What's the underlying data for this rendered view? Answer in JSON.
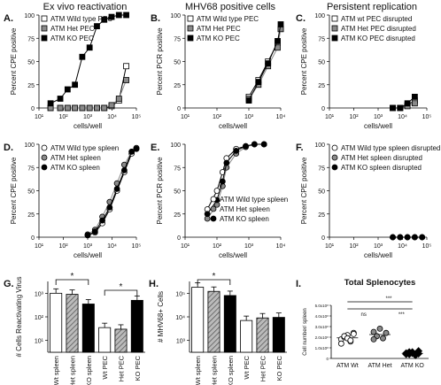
{
  "headers": [
    "Ex vivo reactivation",
    "MHV68 positive cells",
    "Persistent replication"
  ],
  "colors": {
    "black": "#000000",
    "gray": "#8a8a8a",
    "white": "#ffffff",
    "red": "#e05050"
  },
  "chart_data": [
    {
      "letter": "A.",
      "type": "line",
      "xscale": "log",
      "ylabel": "Percent CPE positive",
      "xlabel": "cells/well",
      "xticks": [
        "10¹",
        "10²",
        "10³",
        "10⁴",
        "10⁵"
      ],
      "yticks": [
        "0",
        "25",
        "50",
        "75",
        "100"
      ],
      "legend": [
        "ATM Wild type PEC",
        "ATM Het PEC",
        "ATM KO PEC"
      ],
      "series": [
        {
          "marker": "open-square",
          "x": [
            30,
            75,
            150,
            300,
            600,
            1200,
            2400,
            4800,
            9600,
            19200,
            38400
          ],
          "y": [
            0,
            0,
            0,
            0,
            0,
            0,
            0,
            0,
            2,
            8,
            45
          ]
        },
        {
          "marker": "gray-square",
          "x": [
            30,
            75,
            150,
            300,
            600,
            1200,
            2400,
            4800,
            9600,
            19200,
            38400
          ],
          "y": [
            0,
            0,
            0,
            0,
            0,
            0,
            0,
            0,
            3,
            10,
            30
          ]
        },
        {
          "marker": "filled-square",
          "x": [
            30,
            75,
            150,
            300,
            600,
            1200,
            2400,
            4800,
            9600,
            19200,
            38400
          ],
          "y": [
            5,
            10,
            20,
            25,
            55,
            65,
            88,
            95,
            98,
            100,
            100
          ]
        }
      ]
    },
    {
      "letter": "B.",
      "type": "line",
      "xscale": "log",
      "ylabel": "Percent PCR positive",
      "xlabel": "cells/well",
      "xticks": [
        "10¹",
        "10²",
        "10³",
        "10⁴"
      ],
      "yticks": [
        "0",
        "25",
        "50",
        "75",
        "100"
      ],
      "legend": [
        "ATM Wild type PEC",
        "ATM Het PEC",
        "ATM KO PEC"
      ],
      "series": [
        {
          "marker": "open-square",
          "x": [
            1000,
            2000,
            4000,
            8000,
            10000
          ],
          "y": [
            12,
            30,
            50,
            70,
            85
          ]
        },
        {
          "marker": "gray-square",
          "x": [
            1000,
            2000,
            4000,
            8000,
            10000
          ],
          "y": [
            10,
            25,
            45,
            65,
            85
          ]
        },
        {
          "marker": "filled-square",
          "x": [
            1000,
            2000,
            4000,
            8000,
            10000
          ],
          "y": [
            8,
            28,
            48,
            72,
            90
          ]
        }
      ]
    },
    {
      "letter": "C.",
      "type": "line",
      "xscale": "log",
      "ylabel": "Percent CPE positive",
      "xlabel": "cells/well",
      "xticks": [
        "10¹",
        "10²",
        "10³",
        "10⁴",
        "10⁵"
      ],
      "yticks": [
        "0",
        "25",
        "50",
        "75",
        "100"
      ],
      "legend": [
        "ATM wt PEC disrupted",
        "ATM Het PEC disrupted",
        "ATM KO PEC disrupted"
      ],
      "series": [
        {
          "marker": "open-square",
          "x": [
            4000,
            8000,
            16000,
            32000
          ],
          "y": [
            0,
            0,
            3,
            8
          ]
        },
        {
          "marker": "gray-square",
          "x": [
            4000,
            8000,
            16000,
            32000
          ],
          "y": [
            0,
            0,
            2,
            5
          ]
        },
        {
          "marker": "filled-square",
          "x": [
            4000,
            8000,
            16000,
            32000
          ],
          "y": [
            0,
            0,
            5,
            12
          ]
        }
      ]
    },
    {
      "letter": "D.",
      "type": "line",
      "xscale": "log",
      "ylabel": "Percent CPE positive",
      "xlabel": "cells/well",
      "xticks": [
        "10¹",
        "10²",
        "10³",
        "10⁴",
        "10⁵"
      ],
      "yticks": [
        "0",
        "25",
        "50",
        "75",
        "100"
      ],
      "legend": [
        "ATM Wild type spleen",
        "ATM Het spleen",
        "ATM KO spleen"
      ],
      "series": [
        {
          "marker": "open-circle",
          "x": [
            1000,
            2000,
            4000,
            8000,
            16000,
            32000,
            64000,
            100000
          ],
          "y": [
            2,
            5,
            15,
            30,
            50,
            70,
            90,
            95
          ]
        },
        {
          "marker": "gray-circle",
          "x": [
            1000,
            2000,
            4000,
            8000,
            16000,
            32000,
            64000,
            100000
          ],
          "y": [
            3,
            8,
            22,
            38,
            58,
            78,
            92,
            96
          ]
        },
        {
          "marker": "filled-circle",
          "x": [
            1000,
            2000,
            4000,
            8000,
            16000,
            32000,
            64000,
            100000
          ],
          "y": [
            2,
            6,
            18,
            32,
            52,
            72,
            92,
            95
          ]
        }
      ]
    },
    {
      "letter": "E.",
      "type": "line",
      "xscale": "log",
      "ylabel": "Percent PCR positive",
      "xlabel": "cells/well",
      "xticks": [
        "10¹",
        "10²",
        "10³",
        "10⁴"
      ],
      "yticks": [
        "0",
        "25",
        "50",
        "75",
        "100"
      ],
      "legend": [
        "ATM Wild type spleen",
        "ATM Het spleen",
        "ATM KO spleen"
      ],
      "series": [
        {
          "marker": "open-circle",
          "x": [
            50,
            100,
            150,
            200,
            400,
            800,
            1500,
            3000
          ],
          "y": [
            30,
            50,
            70,
            85,
            95,
            98,
            100,
            100
          ]
        },
        {
          "marker": "gray-circle",
          "x": [
            50,
            100,
            150,
            200,
            400,
            800,
            1500,
            3000
          ],
          "y": [
            20,
            35,
            55,
            75,
            90,
            97,
            100,
            100
          ]
        },
        {
          "marker": "filled-circle",
          "x": [
            50,
            100,
            150,
            200,
            400,
            800,
            1500,
            3000
          ],
          "y": [
            25,
            40,
            60,
            80,
            93,
            98,
            100,
            100
          ]
        }
      ]
    },
    {
      "letter": "F.",
      "type": "line",
      "xscale": "log",
      "ylabel": "Percent CPE positive",
      "xlabel": "cells/well",
      "xticks": [
        "10¹",
        "10²",
        "10³",
        "10⁴",
        "10⁵"
      ],
      "yticks": [
        "0",
        "25",
        "50",
        "75",
        "100"
      ],
      "legend": [
        "ATM Wild type spleen disrupted",
        "ATM Het spleen disrupted",
        "ATM KO spleen disrupted"
      ],
      "series": [
        {
          "marker": "open-circle",
          "x": [
            4000,
            8000,
            16000,
            32000,
            64000
          ],
          "y": [
            0,
            0,
            0,
            0,
            0
          ]
        },
        {
          "marker": "gray-circle",
          "x": [
            4000,
            8000,
            16000,
            32000,
            64000
          ],
          "y": [
            0,
            0,
            0,
            0,
            0
          ]
        },
        {
          "marker": "filled-circle",
          "x": [
            4000,
            8000,
            16000,
            32000,
            64000
          ],
          "y": [
            0,
            0,
            0,
            0,
            0
          ]
        }
      ]
    },
    {
      "letter": "G.",
      "type": "bar",
      "yscale": "log",
      "ylabel": "# Cells Reactivating Virus",
      "yticks": [
        "10¹",
        "10²",
        "10³"
      ],
      "categories": [
        "Wt spleen",
        "Het spleen",
        "KO spleen",
        "Wt PEC",
        "Het PEC",
        "KO PEC"
      ],
      "values": [
        1000,
        900,
        350,
        35,
        30,
        500
      ],
      "significance": [
        "*",
        "*"
      ]
    },
    {
      "letter": "H.",
      "type": "bar",
      "yscale": "log",
      "ylabel": "# MHV68+ Cells",
      "yticks": [
        "10³",
        "10⁴",
        "10⁵"
      ],
      "categories": [
        "Wt spleen",
        "Het spleen",
        "KO spleen",
        "Wt PEC",
        "Het PEC",
        "KO PEC"
      ],
      "values": [
        180000,
        120000,
        80000,
        7000,
        9000,
        9500
      ],
      "significance": [
        "*"
      ]
    },
    {
      "letter": "I.",
      "type": "scatter",
      "title": "Total Splenocytes",
      "ylabel": "Cell number/ spleen",
      "yticks": [
        "5.0x10⁸",
        "4.0x10⁸",
        "3.0x10⁸",
        "2.0x10⁸",
        "1.0x10⁸",
        "0"
      ],
      "categories": [
        "ATM Wt",
        "ATM Het",
        "ATM KO"
      ],
      "significance": [
        "ns",
        "***",
        "***"
      ],
      "series": [
        {
          "category": "ATM Wt",
          "marker": "open-circle",
          "values": [
            180000000.0,
            200000000.0,
            220000000.0,
            160000000.0,
            240000000.0,
            140000000.0,
            210000000.0,
            190000000.0,
            170000000.0,
            230000000.0
          ]
        },
        {
          "category": "ATM Het",
          "marker": "gray-circle",
          "values": [
            250000000.0,
            210000000.0,
            280000000.0,
            190000000.0,
            240000000.0,
            180000000.0
          ]
        },
        {
          "category": "ATM KO",
          "marker": "filled-diamond",
          "values": [
            40000000.0,
            60000000.0,
            50000000.0,
            30000000.0,
            70000000.0,
            50000000.0,
            40000000.0,
            60000000.0,
            35000000.0,
            45000000.0
          ]
        }
      ]
    }
  ]
}
